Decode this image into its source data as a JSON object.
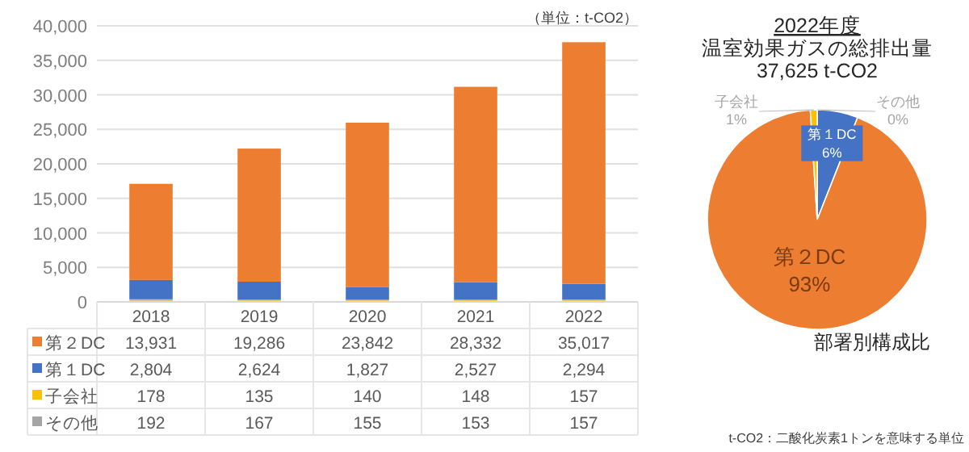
{
  "chart_data": [
    {
      "type": "bar",
      "stacked": true,
      "categories": [
        "2018",
        "2019",
        "2020",
        "2021",
        "2022"
      ],
      "series": [
        {
          "name": "その他",
          "color": "#a5a5a5",
          "values": [
            192,
            167,
            155,
            153,
            157
          ],
          "value_labels": [
            "192",
            "167",
            "155",
            "153",
            "157"
          ]
        },
        {
          "name": "子会社",
          "color": "#ffc000",
          "values": [
            178,
            135,
            140,
            148,
            157
          ],
          "value_labels": [
            "178",
            "135",
            "140",
            "148",
            "157"
          ]
        },
        {
          "name": "第１DC",
          "color": "#4472c4",
          "values": [
            2804,
            2624,
            1827,
            2527,
            2294
          ],
          "value_labels": [
            "2,804",
            "2,624",
            "1,827",
            "2,527",
            "2,294"
          ]
        },
        {
          "name": "第２DC",
          "color": "#ed7d31",
          "values": [
            13931,
            19286,
            23842,
            28332,
            35017
          ],
          "value_labels": [
            "13,931",
            "19,286",
            "23,842",
            "28,332",
            "35,017"
          ]
        }
      ],
      "legend": "left",
      "ylim": [
        0,
        40000
      ],
      "yticks": [
        0,
        {
          "value": 5000,
          "label": "5,000"
        },
        {
          "value": 10000,
          "label": "10,000"
        },
        {
          "value": 15000,
          "label": "15,000"
        },
        {
          "value": 20000,
          "label": "20,000"
        },
        {
          "value": 25000,
          "label": "25,000"
        },
        {
          "value": 30000,
          "label": "30,000"
        },
        {
          "value": 35000,
          "label": "35,000"
        },
        {
          "value": 40000,
          "label": "40,000"
        }
      ],
      "grid": "y",
      "annotations": [
        "（単位：t-CO2）"
      ]
    },
    {
      "type": "pie",
      "title": "2022年度",
      "subtitle": "温室効果ガスの総排出量\n37,625 t-CO2",
      "categories": [
        "その他",
        "第１DC",
        "第２DC",
        "子会社"
      ],
      "values": [
        0,
        6,
        93,
        1
      ],
      "value_labels": [
        "0%",
        "6%",
        "93%",
        "1%"
      ],
      "colors": [
        "#a5a5a5",
        "#4472c4",
        "#ed7d31",
        "#ffc000"
      ],
      "annotations": [
        "部署別構成比",
        "t-CO2：二酸化炭素1トンを意味する単位"
      ]
    }
  ]
}
